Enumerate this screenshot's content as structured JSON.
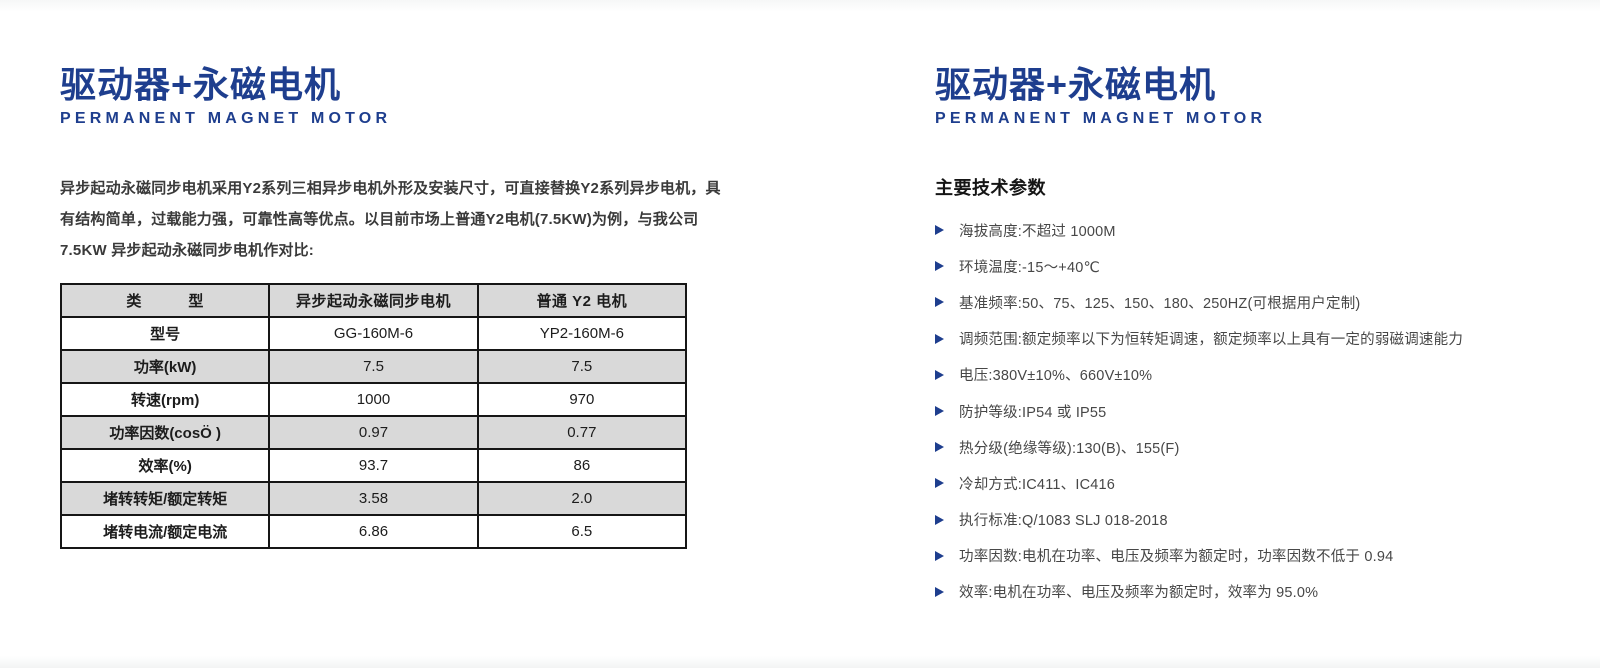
{
  "colors": {
    "accent_navy": "#1E3E8E",
    "table_shaded_bg": "#D9D9D9",
    "table_border": "#161616",
    "body_text": "#3A3A3A"
  },
  "icons": {
    "bullet": "right-triangle-icon"
  },
  "left": {
    "title": "驱动器+永磁电机",
    "subtitle": "PERMANENT MAGNET MOTOR",
    "paragraph_lines": [
      "异步起动永磁同步电机采用Y2系列三相异步电机外形及安装尺寸，可直接替换Y2系列异步电机，具",
      "有结构简单，过载能力强，可靠性高等优点。以目前市场上普通Y2电机(7.5KW)为例，与我公司",
      "7.5KW 异步起动永磁同步电机作对比:"
    ],
    "table": {
      "headers": [
        "类　　　型",
        "异步起动永磁同步电机",
        "普通 Y2 电机"
      ],
      "rows": [
        {
          "label": "型号",
          "pm": "GG-160M-6",
          "y2": "YP2-160M-6"
        },
        {
          "label": "功率(kW)",
          "pm": "7.5",
          "y2": "7.5"
        },
        {
          "label": "转速(rpm)",
          "pm": "1000",
          "y2": "970"
        },
        {
          "label": "功率因数(cosÖ )",
          "pm": "0.97",
          "y2": "0.77"
        },
        {
          "label": "效率(%)",
          "pm": "93.7",
          "y2": "86"
        },
        {
          "label": "堵转转矩/额定转矩",
          "pm": "3.58",
          "y2": "2.0"
        },
        {
          "label": "堵转电流/额定电流",
          "pm": "6.86",
          "y2": "6.5"
        }
      ]
    }
  },
  "right": {
    "title": "驱动器+永磁电机",
    "subtitle": "PERMANENT MAGNET MOTOR",
    "section_heading": "主要技术参数",
    "parameters": [
      "海拔高度:不超过 1000M",
      "环境温度:-15～+40℃",
      "基准频率:50、75、125、150、180、250HZ(可根据用户定制)",
      "调频范围:额定频率以下为恒转矩调速，额定频率以上具有一定的弱磁调速能力",
      "电压:380V±10%、660V±10%",
      "防护等级:IP54 或 IP55",
      "热分级(绝缘等级):130(B)、155(F)",
      "冷却方式:IC411、IC416",
      "执行标准:Q/1083 SLJ 018-2018",
      "功率因数:电机在功率、电压及频率为额定时，功率因数不低于 0.94",
      "效率:电机在功率、电压及频率为额定时，效率为 95.0%"
    ]
  }
}
